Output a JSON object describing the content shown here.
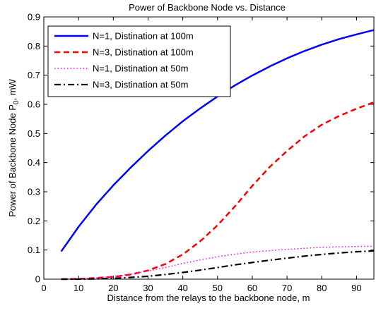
{
  "chart_data": {
    "type": "line",
    "title": "Power of Backbone Node vs. Distance",
    "xlabel": "Distance from the relays to the backbone node, m",
    "ylabel": "Power of Backbone Node P",
    "ylabel_sub": "0",
    "ylabel_suffix": ", mW",
    "xlim": [
      0,
      95
    ],
    "ylim": [
      0,
      0.9
    ],
    "xticks": [
      0,
      10,
      20,
      30,
      40,
      50,
      60,
      70,
      80,
      90
    ],
    "xtick_labels": [
      "0",
      "10",
      "20",
      "30",
      "40",
      "50",
      "60",
      "70",
      "80",
      "90"
    ],
    "yticks": [
      0,
      0.1,
      0.2,
      0.3,
      0.4,
      0.5,
      0.6,
      0.7,
      0.8,
      0.9
    ],
    "ytick_labels": [
      "0",
      "0.1",
      "0.2",
      "0.3",
      "0.4",
      "0.5",
      "0.6",
      "0.7",
      "0.8",
      "0.9"
    ],
    "grid": false,
    "legend_position": "top-left",
    "series": [
      {
        "name": "N=1, Distination at 100m",
        "color": "#0000ff",
        "style": "solid",
        "x": [
          5,
          10,
          15,
          20,
          25,
          30,
          35,
          40,
          45,
          50,
          55,
          60,
          65,
          70,
          75,
          80,
          85,
          90,
          95
        ],
        "y": [
          0.095,
          0.18,
          0.255,
          0.322,
          0.383,
          0.44,
          0.493,
          0.542,
          0.586,
          0.627,
          0.665,
          0.699,
          0.73,
          0.758,
          0.783,
          0.805,
          0.824,
          0.84,
          0.855
        ]
      },
      {
        "name": "N=3, Distination at 100m",
        "color": "#ff0000",
        "style": "dashed",
        "x": [
          5,
          10,
          15,
          20,
          25,
          30,
          35,
          40,
          45,
          50,
          55,
          60,
          65,
          70,
          75,
          80,
          85,
          90,
          95
        ],
        "y": [
          0.0,
          0.001,
          0.004,
          0.008,
          0.016,
          0.03,
          0.052,
          0.085,
          0.13,
          0.185,
          0.25,
          0.32,
          0.385,
          0.44,
          0.49,
          0.53,
          0.56,
          0.585,
          0.607
        ]
      },
      {
        "name": "N=1, Distination at 50m",
        "color": "#ff00ff",
        "style": "dotted",
        "x": [
          5,
          10,
          15,
          20,
          25,
          30,
          35,
          40,
          45,
          50,
          55,
          60,
          65,
          70,
          75,
          80,
          85,
          90,
          95
        ],
        "y": [
          0.0,
          0.001,
          0.004,
          0.009,
          0.017,
          0.028,
          0.04,
          0.054,
          0.066,
          0.077,
          0.086,
          0.093,
          0.098,
          0.102,
          0.106,
          0.109,
          0.111,
          0.112,
          0.113
        ]
      },
      {
        "name": "N=3, Distination at 50m",
        "color": "#000000",
        "style": "dashdot",
        "x": [
          5,
          10,
          15,
          20,
          25,
          30,
          35,
          40,
          45,
          50,
          55,
          60,
          65,
          70,
          75,
          80,
          85,
          90,
          95
        ],
        "y": [
          0.0,
          0.0,
          0.001,
          0.003,
          0.006,
          0.01,
          0.016,
          0.023,
          0.031,
          0.04,
          0.049,
          0.057,
          0.065,
          0.072,
          0.079,
          0.085,
          0.09,
          0.094,
          0.097
        ]
      }
    ]
  }
}
